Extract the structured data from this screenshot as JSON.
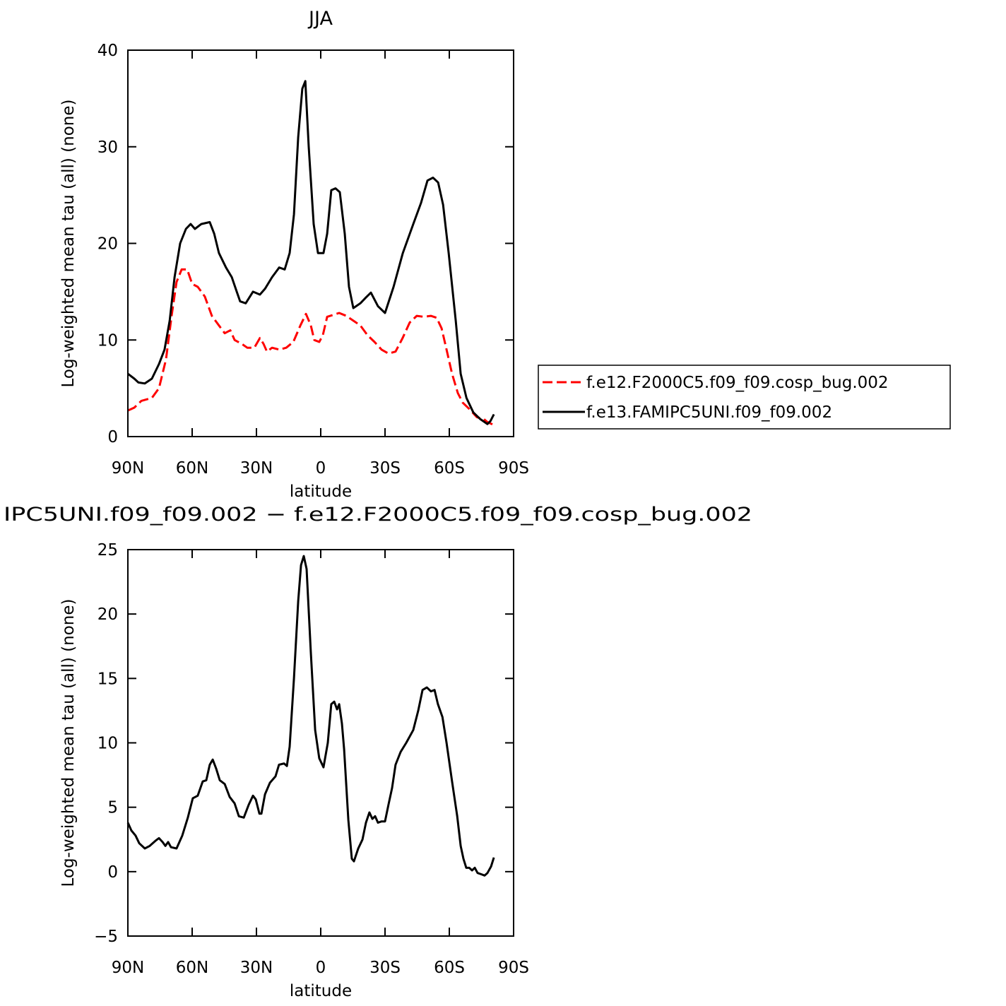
{
  "chart_data": [
    {
      "type": "line",
      "title": "JJA",
      "xlabel": "latitude",
      "ylabel": "Log-weighted mean tau (all) (none)",
      "xlim": [
        90,
        -90
      ],
      "ylim": [
        0,
        40
      ],
      "xticks": [
        {
          "value": 90,
          "label": "90N"
        },
        {
          "value": 60,
          "label": "60N"
        },
        {
          "value": 30,
          "label": "30N"
        },
        0,
        {
          "value": -30,
          "label": "30S"
        },
        {
          "value": -60,
          "label": "60S"
        },
        {
          "value": -90,
          "label": "90S"
        }
      ],
      "yticks": [
        0,
        10,
        20,
        30,
        40
      ],
      "series": [
        {
          "name": "f.e12.F2000C5.f09_f09.cosp_bug.002",
          "color": "#ff0000",
          "dashed": true,
          "x": [
            90,
            87,
            83.7,
            78.8,
            75.5,
            72.2,
            69.6,
            67.3,
            64.9,
            62.3,
            60,
            57.4,
            54.1,
            50.8,
            47.5,
            44.8,
            42.2,
            40.2,
            36.9,
            34.3,
            31,
            28.4,
            26.7,
            25.1,
            22.7,
            19.4,
            16.1,
            12.8,
            9.5,
            6.9,
            4.6,
            3,
            0.7,
            -1,
            -3,
            -5.9,
            -8.6,
            -11.9,
            -15.2,
            -18.5,
            -21.8,
            -25.1,
            -28.4,
            -31.6,
            -34.9,
            -38.2,
            -41.5,
            -44.8,
            -48.1,
            -51.4,
            -54.1,
            -56.4,
            -58.7,
            -61.3,
            -64,
            -66.3,
            -69.6,
            -72.9,
            -76.2,
            -77.8,
            -80.8
          ],
          "values": [
            2.7,
            3.0,
            3.7,
            4.0,
            5.0,
            8,
            12.5,
            16,
            17.3,
            17.3,
            15.8,
            15.5,
            14.5,
            12.5,
            11.5,
            10.7,
            11,
            10,
            9.6,
            9.2,
            9.2,
            10.2,
            9.6,
            8.8,
            9.2,
            9.0,
            9.2,
            9.8,
            11.5,
            12.7,
            11.5,
            10.0,
            9.8,
            10.5,
            12.4,
            12.6,
            12.8,
            12.5,
            12.0,
            11.5,
            10.5,
            9.8,
            9.0,
            8.6,
            8.8,
            10.2,
            11.8,
            12.5,
            12.4,
            12.5,
            12.3,
            11.2,
            9.0,
            6.5,
            4.5,
            3.5,
            2.8,
            2.0,
            1.8,
            1.5,
            1.2
          ]
        },
        {
          "name": "f.e13.FAMIPC5UNI.f09_f09.002",
          "color": "#000000",
          "dashed": false,
          "x": [
            90,
            87,
            85.1,
            82.1,
            78.8,
            75.5,
            72.9,
            70.5,
            68.2,
            65.6,
            62.9,
            60.7,
            58.7,
            55.7,
            51.8,
            49.7,
            47.5,
            44.2,
            41.5,
            39.2,
            37.6,
            35,
            31.6,
            28.4,
            26,
            22.7,
            19.4,
            16.8,
            14.5,
            12.5,
            10.5,
            8.6,
            7.2,
            5.6,
            3.3,
            1.3,
            -1.3,
            -3,
            -4.9,
            -6.9,
            -8.9,
            -11.2,
            -13.2,
            -15.2,
            -18.5,
            -21.1,
            -23.4,
            -26.7,
            -30,
            -34,
            -38.3,
            -43.2,
            -46.8,
            -49.8,
            -52.4,
            -54.8,
            -57.1,
            -59.7,
            -63,
            -65.3,
            -68,
            -71.2,
            -74.5,
            -77.8,
            -79.2,
            -80.8
          ],
          "values": [
            6.5,
            6.0,
            5.6,
            5.5,
            6.0,
            7.5,
            9.0,
            12,
            16.5,
            20,
            21.5,
            22,
            21.5,
            22,
            22.2,
            21,
            19,
            17.5,
            16.5,
            15,
            14,
            13.8,
            15,
            14.7,
            15.3,
            16.5,
            17.5,
            17.3,
            19,
            23,
            31,
            36,
            36.8,
            30,
            22,
            19,
            19,
            21,
            25.5,
            25.7,
            25.3,
            21,
            15.5,
            13.3,
            13.8,
            14.4,
            14.9,
            13.5,
            12.8,
            15.5,
            19,
            22,
            24.2,
            26.5,
            26.8,
            26.3,
            24,
            19,
            12,
            6.5,
            4,
            2.5,
            1.8,
            1.3,
            1.6,
            2.3
          ]
        }
      ]
    },
    {
      "type": "line",
      "title": "IPC5UNI.f09_f09.002 − f.e12.F2000C5.f09_f09.cosp_bug.002",
      "xlabel": "latitude",
      "ylabel": "Log-weighted mean tau (all) (none)",
      "xlim": [
        90,
        -90
      ],
      "ylim": [
        -5,
        25
      ],
      "xticks": [
        {
          "value": 90,
          "label": "90N"
        },
        {
          "value": 60,
          "label": "60N"
        },
        {
          "value": 30,
          "label": "30N"
        },
        0,
        {
          "value": -30,
          "label": "30S"
        },
        {
          "value": -60,
          "label": "60S"
        },
        {
          "value": -90,
          "label": "90S"
        }
      ],
      "yticks": [
        {
          "value": -5,
          "label": "−5"
        },
        0,
        5,
        10,
        15,
        20,
        25
      ],
      "series": [
        {
          "color": "#000000",
          "dashed": false,
          "x": [
            90,
            88.4,
            86.4,
            84.7,
            82.1,
            79.8,
            77.1,
            75.5,
            73.8,
            72.5,
            71.2,
            69.9,
            67.3,
            64.6,
            62,
            59.7,
            57.4,
            55.1,
            53.4,
            51.8,
            50.4,
            48.8,
            47.1,
            44.8,
            42.5,
            40.2,
            38.2,
            35.9,
            33.6,
            31.6,
            30.3,
            28.6,
            27.7,
            26,
            23.7,
            21.1,
            19.5,
            17.1,
            15.8,
            14.5,
            12.5,
            10.5,
            9.2,
            7.9,
            6.6,
            4.6,
            2.6,
            0.7,
            -1.3,
            -3.3,
            -4.9,
            -6.3,
            -7.6,
            -8.6,
            -9.9,
            -10.9,
            -12.9,
            -14.5,
            -15.5,
            -17.5,
            -19.5,
            -21.1,
            -22.7,
            -24.1,
            -25.4,
            -26.7,
            -28.4,
            -30,
            -31.6,
            -33.3,
            -34.9,
            -37.3,
            -39.9,
            -43.2,
            -45.5,
            -47.5,
            -49.5,
            -51.4,
            -53.1,
            -54.7,
            -56.8,
            -58.7,
            -61.3,
            -63.7,
            -65.3,
            -66.6,
            -67.9,
            -69.3,
            -70.6,
            -71.9,
            -73.2,
            -74.9,
            -76.5,
            -77.8,
            -79.5,
            -80.8
          ],
          "values": [
            3.8,
            3.2,
            2.8,
            2.2,
            1.8,
            2.0,
            2.4,
            2.6,
            2.3,
            2.0,
            2.3,
            1.9,
            1.8,
            2.8,
            4.2,
            5.7,
            5.9,
            7.0,
            7.1,
            8.3,
            8.7,
            8.0,
            7.1,
            6.8,
            5.8,
            5.3,
            4.3,
            4.2,
            5.2,
            5.9,
            5.6,
            4.5,
            4.5,
            6.0,
            6.9,
            7.4,
            8.3,
            8.4,
            8.2,
            9.7,
            15,
            21,
            23.8,
            24.5,
            23.5,
            17,
            11,
            8.8,
            8.1,
            10,
            13,
            13.2,
            12.6,
            13.0,
            11.5,
            9.5,
            4,
            1.0,
            0.8,
            1.8,
            2.5,
            3.8,
            4.6,
            4.1,
            4.3,
            3.8,
            3.9,
            3.9,
            5.2,
            6.5,
            8.3,
            9.3,
            10.0,
            11.0,
            12.5,
            14.1,
            14.3,
            14.0,
            14.1,
            13.0,
            12.0,
            10.0,
            7.0,
            4.3,
            2.0,
            1.0,
            0.3,
            0.3,
            0.1,
            0.3,
            -0.1,
            -0.2,
            -0.3,
            -0.1,
            0.4,
            1.1
          ]
        }
      ]
    }
  ]
}
